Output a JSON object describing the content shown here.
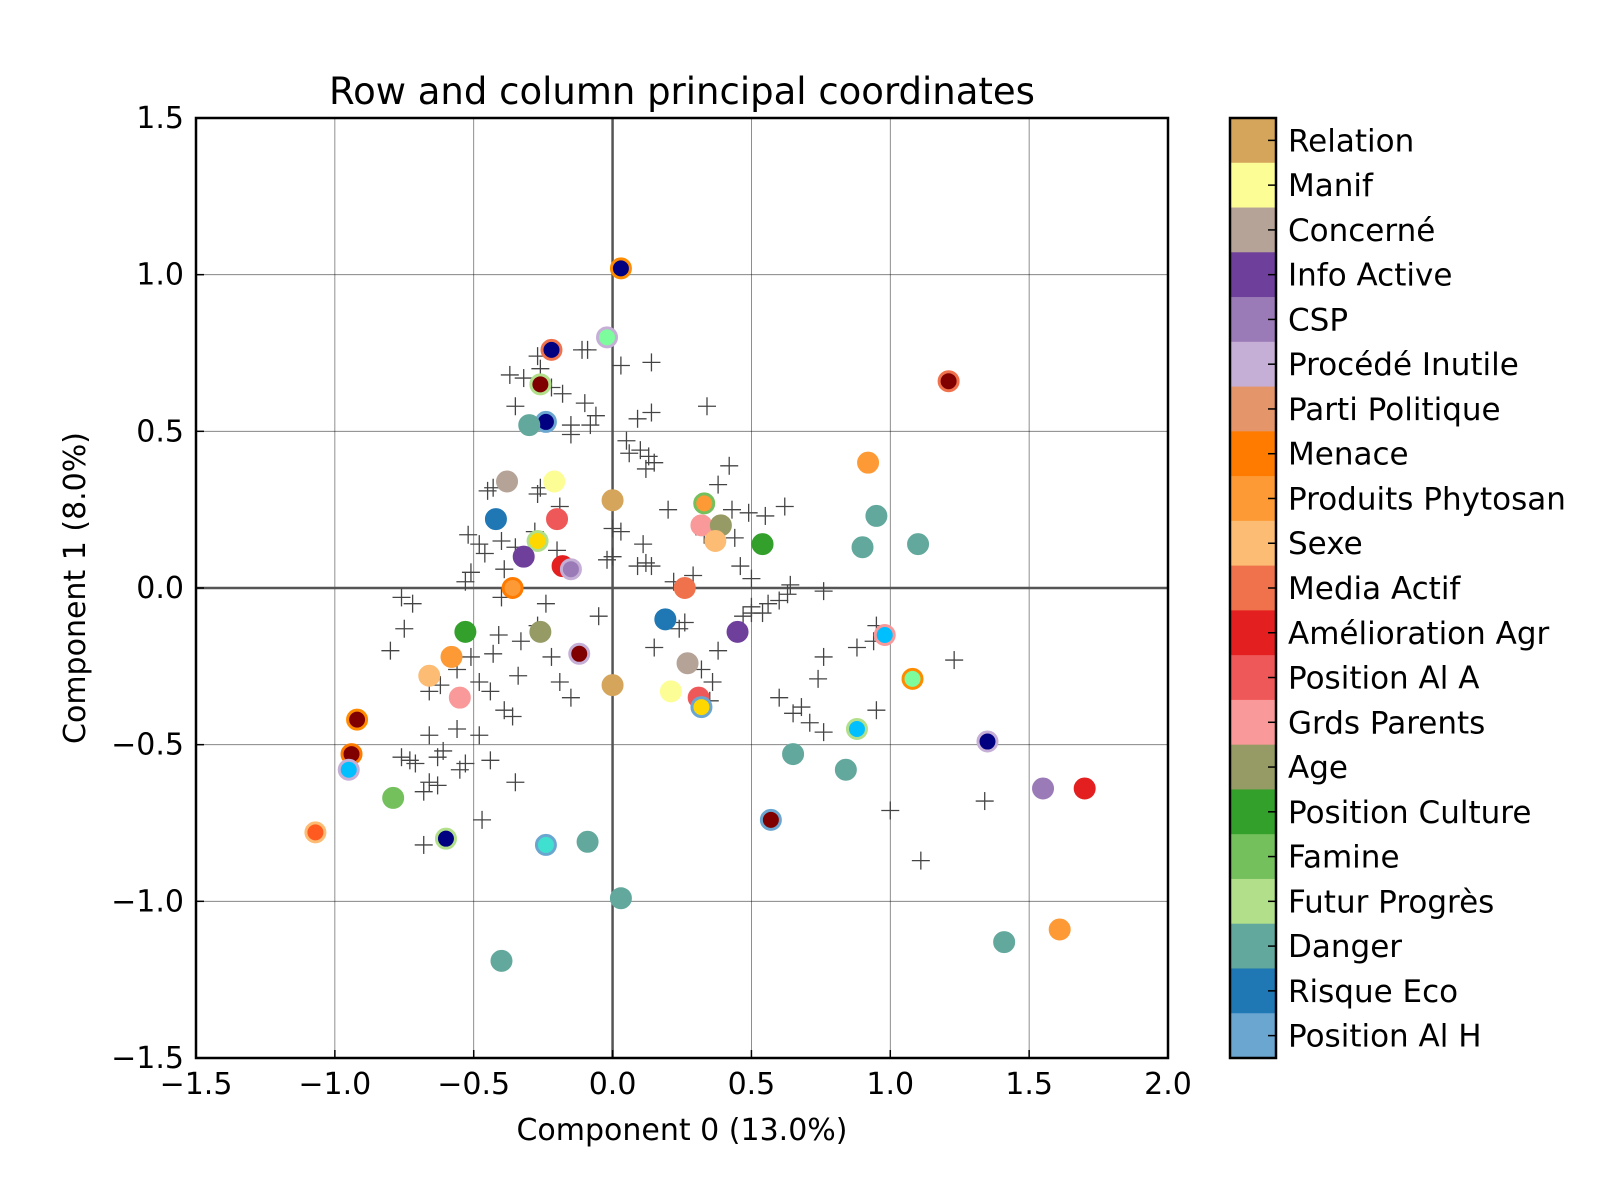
{
  "chart_data": {
    "type": "scatter",
    "title": "Row and column principal coordinates",
    "xlabel": "Component 0 (13.0%)",
    "ylabel": "Component 1 (8.0%)",
    "xlim": [
      -1.5,
      2.0
    ],
    "ylim": [
      -1.5,
      1.5
    ],
    "xticks": [
      "−1.5",
      "−1.0",
      "−0.5",
      "0.0",
      "0.5",
      "1.0",
      "1.5",
      "2.0"
    ],
    "yticks": [
      "−1.5",
      "−1.0",
      "−0.5",
      "0.0",
      "0.5",
      "1.0",
      "1.5"
    ],
    "grid": true,
    "legend_position": "right",
    "legend": [
      {
        "label": "Relation",
        "color": "#d4a55a"
      },
      {
        "label": "Manif",
        "color": "#fdfd96"
      },
      {
        "label": "Concerné",
        "color": "#b5a397"
      },
      {
        "label": "Info Active",
        "color": "#6f3f9c"
      },
      {
        "label": "CSP",
        "color": "#9b7bb7"
      },
      {
        "label": "Procédé Inutile",
        "color": "#c5afd6"
      },
      {
        "label": "Parti Politique",
        "color": "#e4956a"
      },
      {
        "label": "Menace",
        "color": "#ff7b00"
      },
      {
        "label": "Produits Phytosan",
        "color": "#fd9a35"
      },
      {
        "label": "Sexe",
        "color": "#fcbc74"
      },
      {
        "label": "Media Actif",
        "color": "#f0724d"
      },
      {
        "label": "Amélioration Agr",
        "color": "#e31f1f"
      },
      {
        "label": "Position Al A",
        "color": "#ef5858"
      },
      {
        "label": "Grds Parents",
        "color": "#f99999"
      },
      {
        "label": "Age",
        "color": "#969a64"
      },
      {
        "label": "Position Culture",
        "color": "#33a02c"
      },
      {
        "label": "Famine",
        "color": "#74c05d"
      },
      {
        "label": "Futur Progrès",
        "color": "#b2df8a"
      },
      {
        "label": "Danger",
        "color": "#63a89c"
      },
      {
        "label": "Risque Eco",
        "color": "#1f77b4"
      },
      {
        "label": "Position Al H",
        "color": "#6aa6d0"
      }
    ],
    "points": [
      {
        "x": 0.03,
        "y": 1.02,
        "color": "#000080",
        "edge": "#ff8c00"
      },
      {
        "x": -0.22,
        "y": 0.76,
        "color": "#000080",
        "edge": "#f0724d"
      },
      {
        "x": -0.02,
        "y": 0.8,
        "color": "#7cfc9c",
        "edge": "#c5afd6"
      },
      {
        "x": -0.26,
        "y": 0.65,
        "color": "#800000",
        "edge": "#b2df8a"
      },
      {
        "x": -0.24,
        "y": 0.53,
        "color": "#000080",
        "edge": "#6aa6d0"
      },
      {
        "x": -0.3,
        "y": 0.52,
        "color": "#63a89c",
        "edge": "#63a89c"
      },
      {
        "x": 1.21,
        "y": 0.66,
        "color": "#800000",
        "edge": "#f0724d"
      },
      {
        "x": 0.92,
        "y": 0.4,
        "color": "#fd9a35",
        "edge": "#fd9a35"
      },
      {
        "x": -0.38,
        "y": 0.34,
        "color": "#b5a397",
        "edge": "#b5a397"
      },
      {
        "x": -0.21,
        "y": 0.34,
        "color": "#fdfd96",
        "edge": "#fdfd96"
      },
      {
        "x": 0.0,
        "y": 0.28,
        "color": "#d4a55a",
        "edge": "#d4a55a"
      },
      {
        "x": 0.33,
        "y": 0.27,
        "color": "#fd9a35",
        "edge": "#74c05d"
      },
      {
        "x": -0.42,
        "y": 0.22,
        "color": "#1f77b4",
        "edge": "#1f77b4"
      },
      {
        "x": -0.2,
        "y": 0.22,
        "color": "#ef5858",
        "edge": "#ef5858"
      },
      {
        "x": 0.32,
        "y": 0.2,
        "color": "#f99999",
        "edge": "#f99999"
      },
      {
        "x": 0.39,
        "y": 0.2,
        "color": "#969a64",
        "edge": "#969a64"
      },
      {
        "x": 0.95,
        "y": 0.23,
        "color": "#63a89c",
        "edge": "#63a89c"
      },
      {
        "x": 1.1,
        "y": 0.14,
        "color": "#63a89c",
        "edge": "#63a89c"
      },
      {
        "x": 0.9,
        "y": 0.13,
        "color": "#63a89c",
        "edge": "#63a89c"
      },
      {
        "x": -0.27,
        "y": 0.15,
        "color": "#ffd700",
        "edge": "#b2df8a"
      },
      {
        "x": 0.37,
        "y": 0.15,
        "color": "#fcbc74",
        "edge": "#fcbc74"
      },
      {
        "x": 0.54,
        "y": 0.14,
        "color": "#33a02c",
        "edge": "#33a02c"
      },
      {
        "x": -0.32,
        "y": 0.1,
        "color": "#6f3f9c",
        "edge": "#6f3f9c"
      },
      {
        "x": -0.18,
        "y": 0.07,
        "color": "#e31f1f",
        "edge": "#e31f1f"
      },
      {
        "x": -0.15,
        "y": 0.06,
        "color": "#9b7bb7",
        "edge": "#c5afd6"
      },
      {
        "x": -0.36,
        "y": 0.0,
        "color": "#fd9a35",
        "edge": "#ff7b00"
      },
      {
        "x": 0.26,
        "y": 0.0,
        "color": "#f0724d",
        "edge": "#f0724d"
      },
      {
        "x": 0.19,
        "y": -0.1,
        "color": "#1f77b4",
        "edge": "#1f77b4"
      },
      {
        "x": -0.53,
        "y": -0.14,
        "color": "#33a02c",
        "edge": "#33a02c"
      },
      {
        "x": -0.26,
        "y": -0.14,
        "color": "#969a64",
        "edge": "#969a64"
      },
      {
        "x": 0.45,
        "y": -0.14,
        "color": "#6f3f9c",
        "edge": "#6f3f9c"
      },
      {
        "x": 0.98,
        "y": -0.15,
        "color": "#00bfff",
        "edge": "#f99999"
      },
      {
        "x": -0.12,
        "y": -0.21,
        "color": "#800000",
        "edge": "#c5afd6"
      },
      {
        "x": -0.58,
        "y": -0.22,
        "color": "#fd9a35",
        "edge": "#fd9a35"
      },
      {
        "x": 0.27,
        "y": -0.24,
        "color": "#b5a397",
        "edge": "#b5a397"
      },
      {
        "x": -0.66,
        "y": -0.28,
        "color": "#fcbc74",
        "edge": "#fcbc74"
      },
      {
        "x": 1.08,
        "y": -0.29,
        "color": "#7cfc9c",
        "edge": "#ff8c00"
      },
      {
        "x": 0.0,
        "y": -0.31,
        "color": "#d4a55a",
        "edge": "#d4a55a"
      },
      {
        "x": 0.21,
        "y": -0.33,
        "color": "#fdfd96",
        "edge": "#fdfd96"
      },
      {
        "x": 0.31,
        "y": -0.35,
        "color": "#ef5858",
        "edge": "#ef5858"
      },
      {
        "x": -0.55,
        "y": -0.35,
        "color": "#f99999",
        "edge": "#f99999"
      },
      {
        "x": 0.32,
        "y": -0.38,
        "color": "#ffd700",
        "edge": "#6aa6d0"
      },
      {
        "x": -0.92,
        "y": -0.42,
        "color": "#800000",
        "edge": "#ff8c00"
      },
      {
        "x": 0.88,
        "y": -0.45,
        "color": "#00bfff",
        "edge": "#b2df8a"
      },
      {
        "x": 1.35,
        "y": -0.49,
        "color": "#000080",
        "edge": "#c5afd6"
      },
      {
        "x": -0.94,
        "y": -0.53,
        "color": "#800000",
        "edge": "#ff7b00"
      },
      {
        "x": 0.65,
        "y": -0.53,
        "color": "#63a89c",
        "edge": "#63a89c"
      },
      {
        "x": -0.95,
        "y": -0.58,
        "color": "#00bfff",
        "edge": "#c5afd6"
      },
      {
        "x": 0.84,
        "y": -0.58,
        "color": "#63a89c",
        "edge": "#63a89c"
      },
      {
        "x": 1.55,
        "y": -0.64,
        "color": "#9b7bb7",
        "edge": "#9b7bb7"
      },
      {
        "x": 1.7,
        "y": -0.64,
        "color": "#e31f1f",
        "edge": "#e31f1f"
      },
      {
        "x": -0.79,
        "y": -0.67,
        "color": "#74c05d",
        "edge": "#74c05d"
      },
      {
        "x": 0.57,
        "y": -0.74,
        "color": "#800000",
        "edge": "#6aa6d0"
      },
      {
        "x": -1.07,
        "y": -0.78,
        "color": "#ff5a1f",
        "edge": "#fcbc74"
      },
      {
        "x": -0.6,
        "y": -0.8,
        "color": "#000080",
        "edge": "#b2df8a"
      },
      {
        "x": -0.09,
        "y": -0.81,
        "color": "#63a89c",
        "edge": "#63a89c"
      },
      {
        "x": -0.24,
        "y": -0.82,
        "color": "#40e0d0",
        "edge": "#6aa6d0"
      },
      {
        "x": 0.03,
        "y": -0.99,
        "color": "#63a89c",
        "edge": "#63a89c"
      },
      {
        "x": 1.41,
        "y": -1.13,
        "color": "#63a89c",
        "edge": "#63a89c"
      },
      {
        "x": 1.61,
        "y": -1.09,
        "color": "#fd9a35",
        "edge": "#fd9a35"
      },
      {
        "x": -0.4,
        "y": -1.19,
        "color": "#63a89c",
        "edge": "#63a89c"
      }
    ],
    "crosses": [
      [
        -0.27,
        0.74
      ],
      [
        -0.37,
        0.68
      ],
      [
        -0.32,
        0.67
      ],
      [
        -0.26,
        0.7
      ],
      [
        -0.22,
        0.64
      ],
      [
        -0.09,
        0.76
      ],
      [
        -0.11,
        0.76
      ],
      [
        0.03,
        0.71
      ],
      [
        0.14,
        0.72
      ],
      [
        0.34,
        0.58
      ],
      [
        -0.35,
        0.58
      ],
      [
        -0.18,
        0.62
      ],
      [
        -0.1,
        0.59
      ],
      [
        -0.06,
        0.55
      ],
      [
        -0.08,
        0.52
      ],
      [
        -0.15,
        0.52
      ],
      [
        -0.15,
        0.49
      ],
      [
        0.09,
        0.54
      ],
      [
        0.14,
        0.56
      ],
      [
        0.05,
        0.47
      ],
      [
        0.06,
        0.43
      ],
      [
        0.1,
        0.44
      ],
      [
        0.13,
        0.42
      ],
      [
        0.12,
        0.38
      ],
      [
        0.15,
        0.4
      ],
      [
        0.42,
        0.39
      ],
      [
        0.38,
        0.33
      ],
      [
        -0.45,
        0.31
      ],
      [
        -0.43,
        0.32
      ],
      [
        -0.26,
        0.32
      ],
      [
        -0.27,
        0.3
      ],
      [
        0.2,
        0.25
      ],
      [
        0.43,
        0.25
      ],
      [
        0.49,
        0.24
      ],
      [
        0.55,
        0.23
      ],
      [
        0.62,
        0.26
      ],
      [
        -0.19,
        0.26
      ],
      [
        -0.52,
        0.17
      ],
      [
        -0.48,
        0.14
      ],
      [
        -0.46,
        0.11
      ],
      [
        -0.4,
        0.15
      ],
      [
        -0.35,
        0.13
      ],
      [
        -0.39,
        0.06
      ],
      [
        -0.51,
        0.05
      ],
      [
        -0.53,
        0.02
      ],
      [
        -0.28,
        0.18
      ],
      [
        -0.2,
        0.12
      ],
      [
        0.0,
        0.19
      ],
      [
        0.03,
        0.18
      ],
      [
        0.11,
        0.14
      ],
      [
        0.12,
        0.08
      ],
      [
        0.14,
        0.07
      ],
      [
        0.09,
        0.07
      ],
      [
        -0.02,
        0.09
      ],
      [
        0.0,
        0.1
      ],
      [
        0.33,
        0.17
      ],
      [
        0.44,
        0.16
      ],
      [
        0.46,
        0.07
      ],
      [
        0.5,
        0.03
      ],
      [
        0.29,
        0.04
      ],
      [
        0.22,
        0.02
      ],
      [
        0.64,
        0.01
      ],
      [
        0.63,
        -0.02
      ],
      [
        0.6,
        -0.04
      ],
      [
        0.56,
        -0.05
      ],
      [
        0.54,
        -0.08
      ],
      [
        0.5,
        -0.06
      ],
      [
        0.5,
        -0.08
      ],
      [
        0.47,
        -0.09
      ],
      [
        0.76,
        -0.01
      ],
      [
        -0.76,
        -0.03
      ],
      [
        -0.72,
        -0.05
      ],
      [
        -0.4,
        -0.03
      ],
      [
        -0.24,
        -0.05
      ],
      [
        -0.05,
        -0.09
      ],
      [
        0.26,
        -0.11
      ],
      [
        0.24,
        -0.13
      ],
      [
        0.15,
        -0.19
      ],
      [
        -0.75,
        -0.13
      ],
      [
        -0.8,
        -0.2
      ],
      [
        -0.41,
        -0.15
      ],
      [
        -0.33,
        -0.17
      ],
      [
        -0.27,
        -0.12
      ],
      [
        -0.43,
        -0.21
      ],
      [
        -0.51,
        -0.22
      ],
      [
        -0.22,
        -0.22
      ],
      [
        -0.19,
        -0.3
      ],
      [
        -0.15,
        -0.35
      ],
      [
        -0.34,
        -0.28
      ],
      [
        -0.44,
        -0.33
      ],
      [
        -0.48,
        -0.3
      ],
      [
        -0.56,
        -0.26
      ],
      [
        -0.62,
        -0.31
      ],
      [
        -0.66,
        -0.33
      ],
      [
        0.38,
        -0.2
      ],
      [
        0.32,
        -0.26
      ],
      [
        0.36,
        -0.3
      ],
      [
        0.35,
        -0.36
      ],
      [
        0.76,
        -0.22
      ],
      [
        0.74,
        -0.29
      ],
      [
        0.6,
        -0.35
      ],
      [
        0.65,
        -0.4
      ],
      [
        0.68,
        -0.38
      ],
      [
        0.71,
        -0.43
      ],
      [
        0.76,
        -0.46
      ],
      [
        0.88,
        -0.19
      ],
      [
        0.94,
        -0.17
      ],
      [
        0.95,
        -0.12
      ],
      [
        0.95,
        -0.39
      ],
      [
        1.23,
        -0.23
      ],
      [
        -0.66,
        -0.47
      ],
      [
        -0.61,
        -0.52
      ],
      [
        -0.56,
        -0.45
      ],
      [
        -0.48,
        -0.47
      ],
      [
        -0.44,
        -0.55
      ],
      [
        -0.39,
        -0.39
      ],
      [
        -0.36,
        -0.41
      ],
      [
        -0.53,
        -0.56
      ],
      [
        -0.55,
        -0.58
      ],
      [
        -0.63,
        -0.54
      ],
      [
        -0.71,
        -0.56
      ],
      [
        -0.73,
        -0.55
      ],
      [
        -0.76,
        -0.54
      ],
      [
        -0.66,
        -0.62
      ],
      [
        -0.68,
        -0.65
      ],
      [
        -0.63,
        -0.63
      ],
      [
        -0.35,
        -0.62
      ],
      [
        -0.47,
        -0.74
      ],
      [
        -0.68,
        -0.82
      ],
      [
        1.0,
        -0.71
      ],
      [
        1.34,
        -0.68
      ],
      [
        1.11,
        -0.87
      ]
    ]
  }
}
